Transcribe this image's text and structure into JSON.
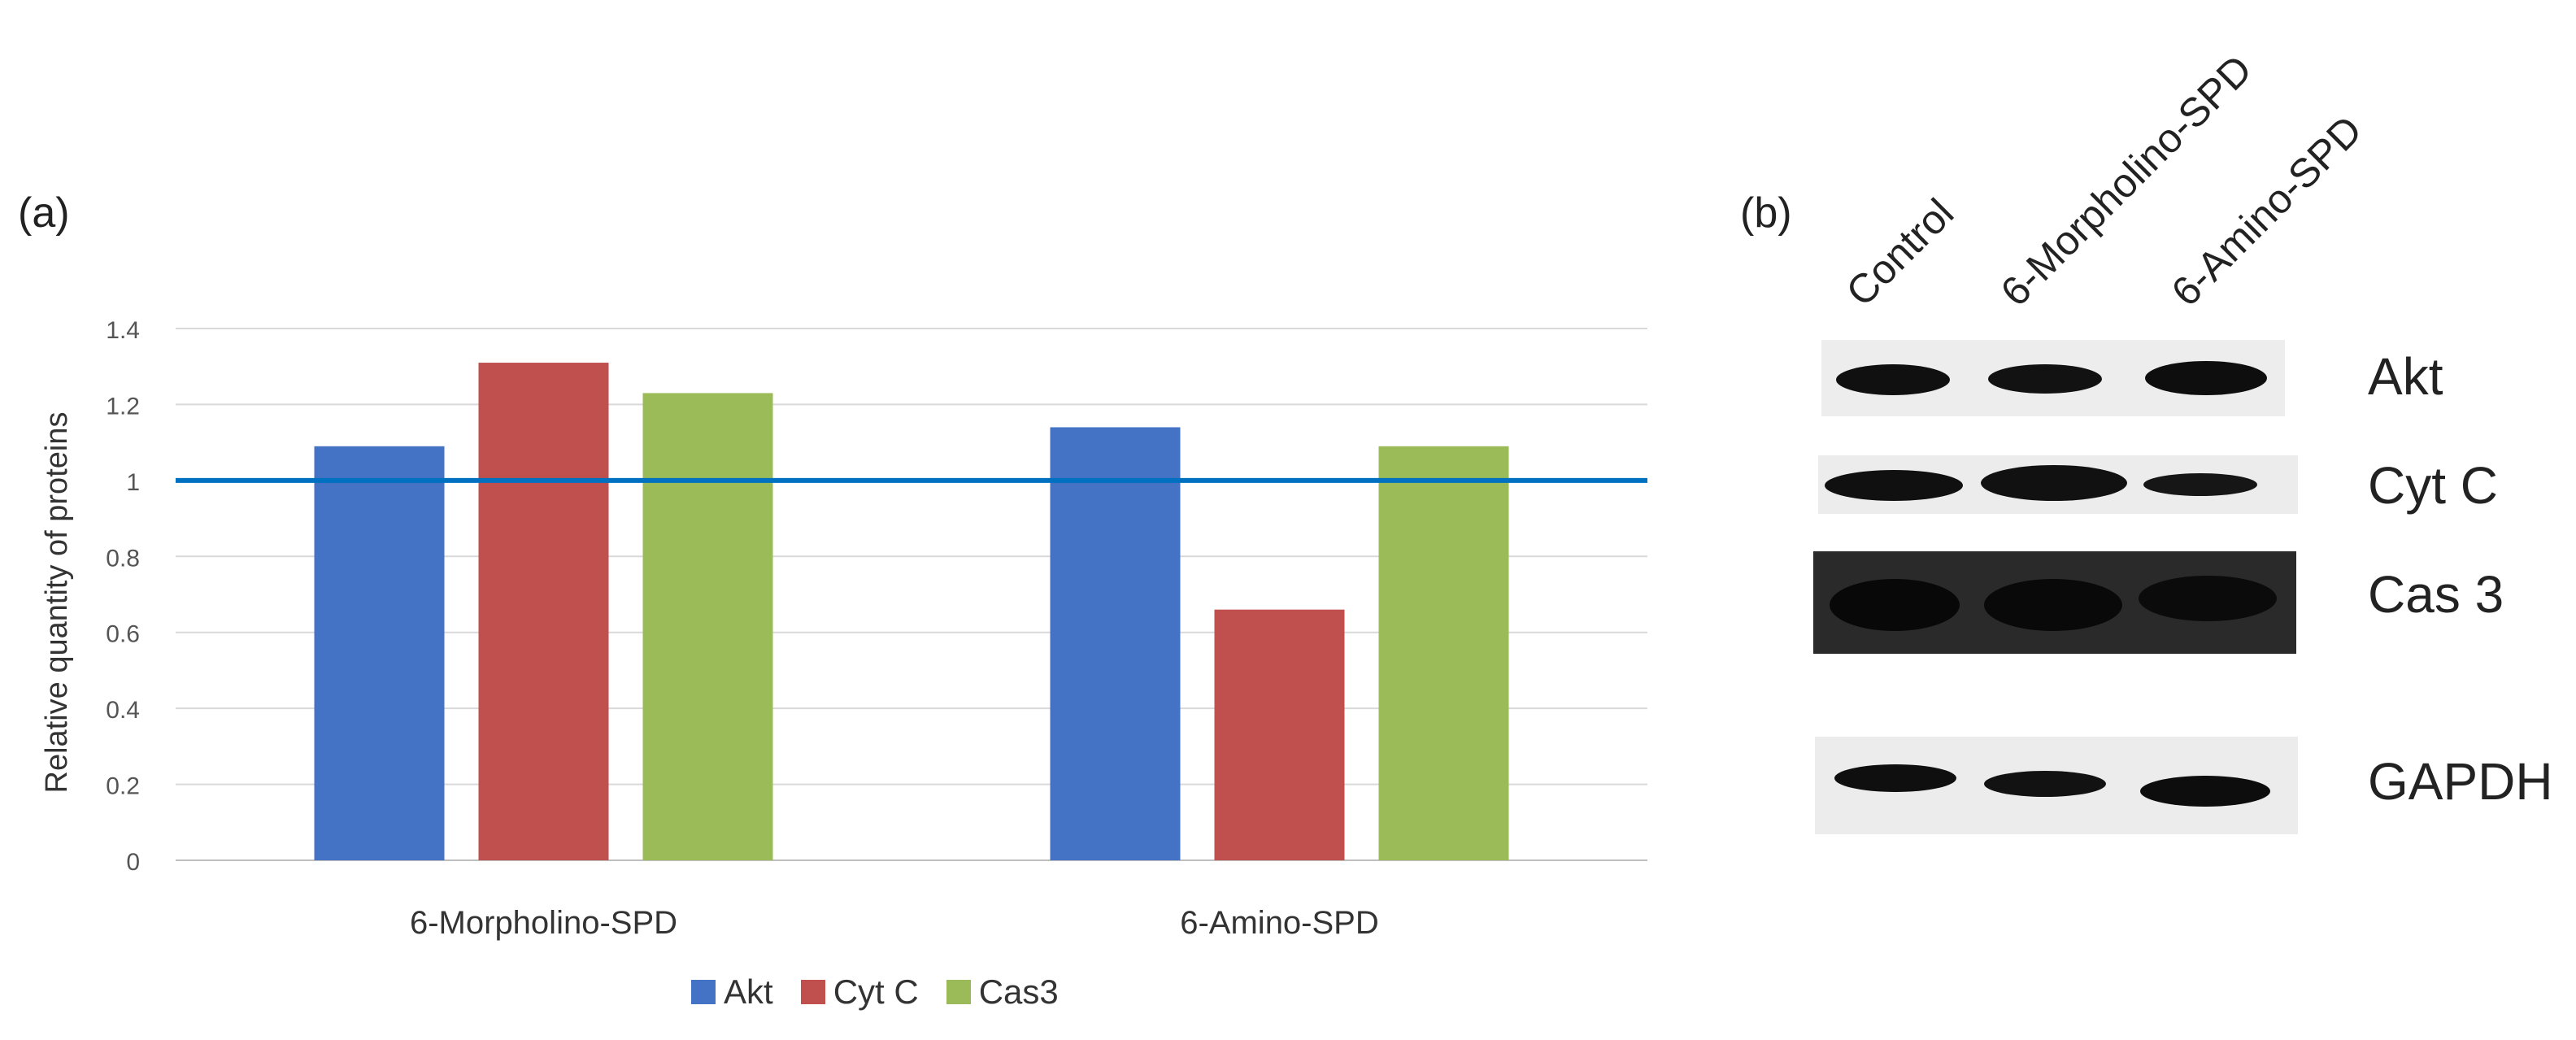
{
  "panel_a_label": "(a)",
  "panel_b_label": "(b)",
  "chart_data": {
    "type": "bar",
    "categories": [
      "6-Morpholino-SPD",
      "6-Amino-SPD"
    ],
    "series": [
      {
        "name": "Akt",
        "values": [
          1.09,
          1.14
        ],
        "color": "#4472c4"
      },
      {
        "name": "Cyt C",
        "values": [
          1.31,
          0.66
        ],
        "color": "#c0504d"
      },
      {
        "name": "Cas3",
        "values": [
          1.23,
          1.09
        ],
        "color": "#9bbb59"
      }
    ],
    "ylabel": "Relative quantity of proteins",
    "xlabel": "",
    "ylim": [
      0,
      1.4
    ],
    "yticks": [
      "0",
      "0.2",
      "0.4",
      "0.6",
      "0.8",
      "1",
      "1.2",
      "1.4"
    ],
    "reference_line": {
      "y": 1,
      "color": "#0070c0"
    },
    "grid": true,
    "legend_position": "bottom"
  },
  "blot": {
    "lanes": [
      "Control",
      "6-Morpholino-SPD",
      "6-Amino-SPD"
    ],
    "proteins": [
      "Akt",
      "Cyt C",
      "Cas 3",
      "GAPDH"
    ]
  }
}
